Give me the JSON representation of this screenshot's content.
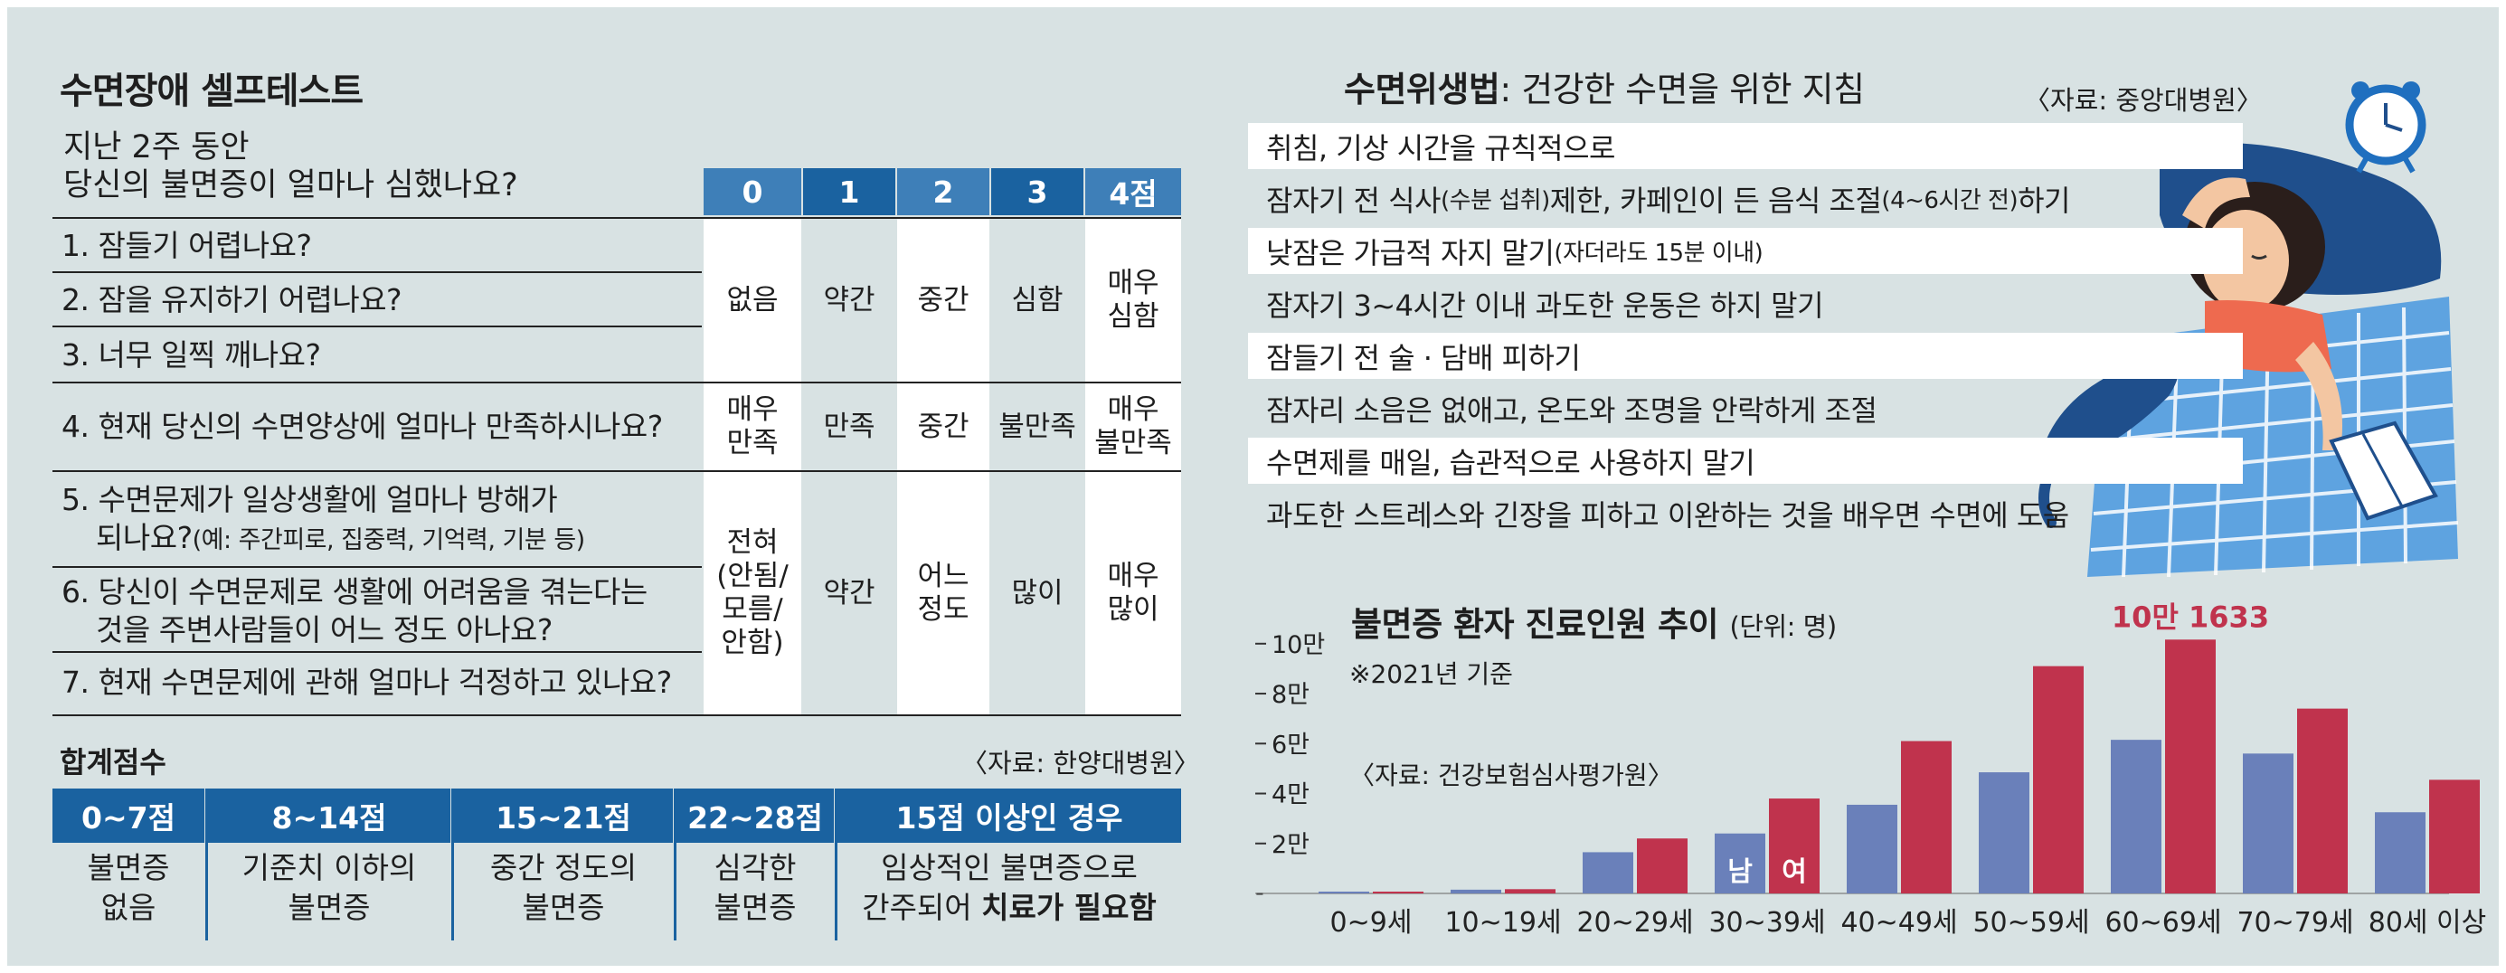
{
  "left": {
    "title": "수면장애 셀프테스트",
    "intro_line1": "지난 2주 동안",
    "intro_line2": "당신의 불면증이 얼마나 심했나요?",
    "score_headers": [
      "0",
      "1",
      "2",
      "3",
      "4점"
    ],
    "questions": [
      {
        "text": "1. 잠들기 어렵나요?"
      },
      {
        "text": "2. 잠을 유지하기 어렵나요?"
      },
      {
        "text": "3. 너무 일찍 깨나요?"
      },
      {
        "text": "4. 현재 당신의 수면양상에 얼마나 만족하시나요?"
      },
      {
        "text1": "5. 수면문제가 일상생활에 얼마나 방해가",
        "text2": "되나요?",
        "note": "(예: 주간피로, 집중력, 기억력, 기분 등)"
      },
      {
        "text1": "6. 당신이 수면문제로 생활에 어려움을 겪는다는",
        "text2": "것을 주변사람들이 어느 정도 아나요?"
      },
      {
        "text": "7. 현재 수면문제에 관해 얼마나 걱정하고 있나요?"
      }
    ],
    "group1": [
      [
        "없음"
      ],
      [
        "약간"
      ],
      [
        "중간"
      ],
      [
        "심함"
      ],
      [
        "매우",
        "심함"
      ]
    ],
    "group2": [
      [
        "매우",
        "만족"
      ],
      [
        "만족"
      ],
      [
        "중간"
      ],
      [
        "불만족"
      ],
      [
        "매우",
        "불만족"
      ]
    ],
    "group3": [
      [
        "전혀",
        "(안됨/",
        "모름/",
        "안함)"
      ],
      [
        "약간"
      ],
      [
        "어느",
        "정도"
      ],
      [
        "많이"
      ],
      [
        "매우",
        "많이"
      ]
    ],
    "sum_title": "합계점수",
    "source": "〈자료: 한양대병원〉",
    "bands": [
      {
        "label": "0~7점",
        "line1": "불면증",
        "line2": "없음"
      },
      {
        "label": "8~14점",
        "line1": "기준치 이하의",
        "line2": "불면증"
      },
      {
        "label": "15~21점",
        "line1": "중간 정도의",
        "line2": "불면증"
      },
      {
        "label": "22~28점",
        "line1": "심각한",
        "line2": "불면증"
      },
      {
        "label": "15점 이상인 경우",
        "line1": "임상적인 불면증으로",
        "line2a": "간주되어 ",
        "line2b": "치료가 필요함"
      }
    ],
    "colors": {
      "header_dark": "#1a62a0",
      "header_light": "#3e7fb8"
    }
  },
  "hygiene": {
    "title_bold": "수면위생법",
    "title_rest": ": 건강한 수면을 위한 지침",
    "source": "〈자료: 중앙대병원〉",
    "tips": [
      {
        "text": "취침, 기상 시간을 규칙적으로"
      },
      {
        "text_a": "잠자기 전 식사",
        "text_b": "(수분 섭취)",
        "text_c": " 제한, 카페인이 든 음식 조절",
        "text_d": "(4~6시간 전)",
        "text_e": " 하기"
      },
      {
        "text_a": "낮잠은 가급적 자지 말기",
        "text_b": "(자더라도 15분 이내)"
      },
      {
        "text": "잠자기 3~4시간 이내 과도한 운동은 하지 말기"
      },
      {
        "text": "잠들기 전 술 · 담배 피하기"
      },
      {
        "text": "잠자리 소음은 없애고, 온도와 조명을 안락하게 조절"
      },
      {
        "text": "수면제를 매일, 습관적으로 사용하지 말기"
      },
      {
        "text": "과도한 스트레스와 긴장을 피하고 이완하는 것을 배우면 수면에 도움"
      }
    ],
    "illustration": "woman-sleeping-with-cat-and-alarm-clock-icon"
  },
  "chart_data": {
    "type": "bar",
    "title": "불면증 환자 진료인원 추이",
    "unit": "(단위: 명)",
    "note": "※2021년 기준",
    "source": "〈자료: 건강보험심사평가원〉",
    "categories": [
      "0~9세",
      "10~19세",
      "20~29세",
      "30~39세",
      "40~49세",
      "50~59세",
      "60~69세",
      "70~79세",
      "80세 이상"
    ],
    "series": [
      {
        "name": "남",
        "color": "#6a80ba",
        "values": [
          200,
          1500,
          16500,
          24000,
          35500,
          48500,
          61500,
          56000,
          32500
        ]
      },
      {
        "name": "여",
        "color": "#c0334d",
        "values": [
          300,
          1700,
          22000,
          38000,
          61000,
          91000,
          101633,
          74000,
          45500
        ]
      }
    ],
    "ylim": [
      0,
      105000
    ],
    "yticks": [
      {
        "v": 0,
        "label": "-"
      },
      {
        "v": 20000,
        "label": "2만"
      },
      {
        "v": 40000,
        "label": "4만"
      },
      {
        "v": 60000,
        "label": "6만"
      },
      {
        "v": 80000,
        "label": "8만"
      },
      {
        "v": 100000,
        "label": "10만"
      }
    ],
    "highlight_label": "10만 1633",
    "highlight_color": "#c0334d"
  }
}
